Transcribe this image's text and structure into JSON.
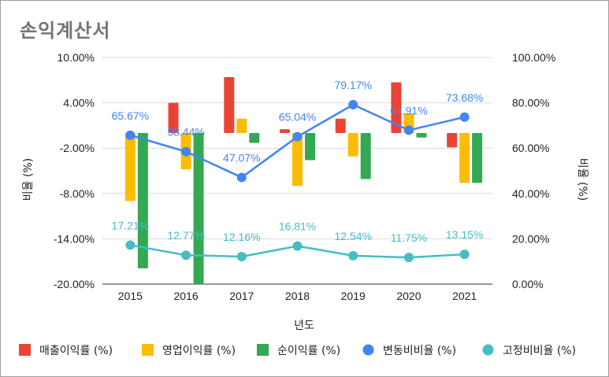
{
  "title": "손익계산서",
  "chart_data": {
    "type": "bar+line",
    "title": "손익계산서",
    "xlabel": "년도",
    "ylabel_left": "비율 (%)",
    "ylabel_right": "비율 (%)",
    "categories": [
      "2015",
      "2016",
      "2017",
      "2018",
      "2019",
      "2020",
      "2021"
    ],
    "left_axis": {
      "min": -20,
      "max": 10,
      "ticks": [
        "10.00%",
        "4.00%",
        "-2.00%",
        "-8.00%",
        "-14.00%",
        "-20.00%"
      ],
      "tick_values": [
        10,
        4,
        -2,
        -8,
        -14,
        -20
      ]
    },
    "right_axis": {
      "min": 0,
      "max": 100,
      "ticks": [
        "100.00%",
        "80.00%",
        "60.00%",
        "40.00%",
        "20.00%",
        "0.00%"
      ],
      "tick_values": [
        100,
        80,
        60,
        40,
        20,
        0
      ]
    },
    "bar_series": [
      {
        "name": "매출이익률 (%)",
        "color": "#ea4335",
        "values": [
          0,
          4,
          7.4,
          0.5,
          1.9,
          6.7,
          -1.9
        ]
      },
      {
        "name": "영업이익률 (%)",
        "color": "#fbbc04",
        "values": [
          -9,
          -4.8,
          1.9,
          -7,
          -3.1,
          2.6,
          -6.6
        ]
      },
      {
        "name": "순이익률 (%)",
        "color": "#34a853",
        "values": [
          -17.9,
          -20.5,
          -1.3,
          -3.6,
          -6.1,
          -0.6,
          -6.6
        ]
      }
    ],
    "line_series": [
      {
        "name": "변동비비율 (%)",
        "color": "#4285f4",
        "values": [
          65.67,
          58.44,
          47.07,
          65.04,
          79.17,
          67.91,
          73.68
        ],
        "labels": [
          "65.67%",
          "58.44%",
          "47.07%",
          "65.04%",
          "79.17%",
          "67.91%",
          "73.68%"
        ]
      },
      {
        "name": "고정비비율 (%)",
        "color": "#46bdc6",
        "values": [
          17.21,
          12.77,
          12.16,
          16.81,
          12.54,
          11.75,
          13.15
        ],
        "labels": [
          "17.21%",
          "12.77%",
          "12.16%",
          "16.81%",
          "12.54%",
          "11.75%",
          "13.15%"
        ]
      }
    ],
    "gridlines": true,
    "legend_position": "bottom"
  }
}
